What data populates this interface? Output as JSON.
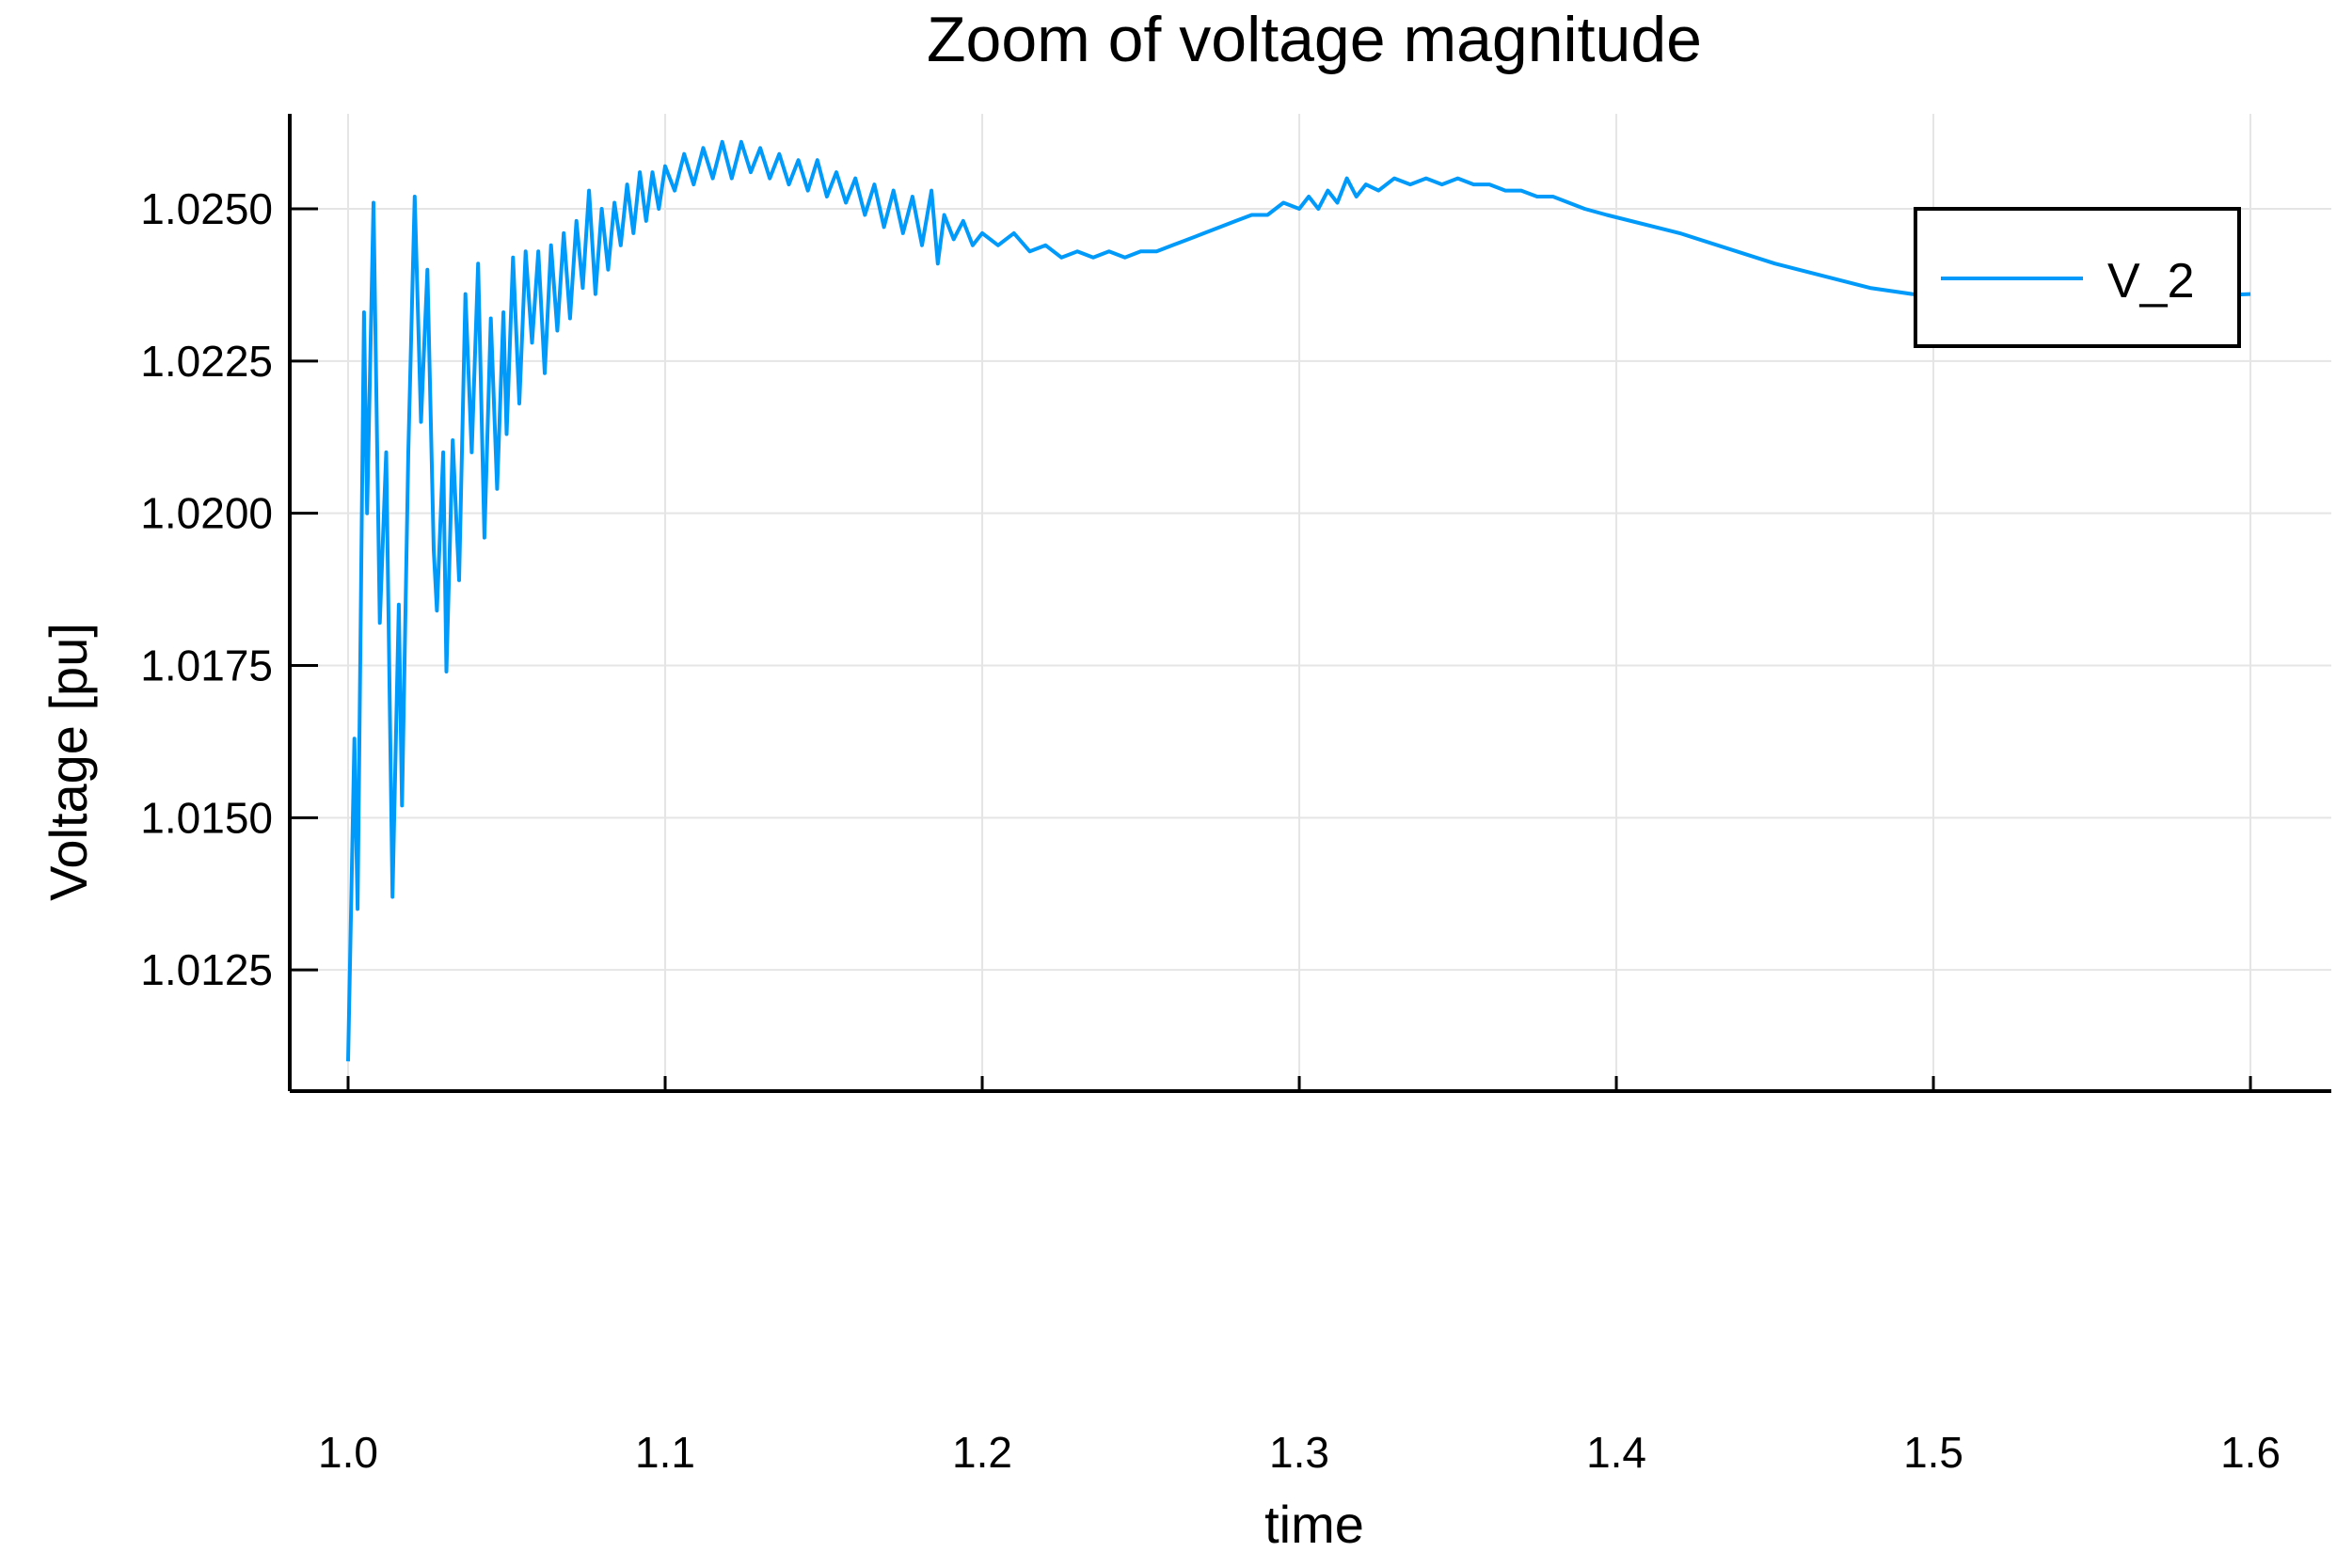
{
  "chart_data": {
    "type": "line",
    "title": "Zoom of voltage magnitude",
    "xlabel": "time",
    "ylabel": "Voltage [pu]",
    "xlim": [
      0.9816,
      1.6255
    ],
    "ylim": [
      1.01051,
      1.02656
    ],
    "xticks": [
      1.0,
      1.1,
      1.2,
      1.3,
      1.4,
      1.5,
      1.6
    ],
    "xtick_labels": [
      "1.0",
      "1.1",
      "1.2",
      "1.3",
      "1.4",
      "1.5",
      "1.6"
    ],
    "yticks": [
      1.0125,
      1.015,
      1.0175,
      1.02,
      1.0225,
      1.025
    ],
    "ytick_labels": [
      "1.0125",
      "1.0150",
      "1.0175",
      "1.0200",
      "1.0225",
      "1.0250"
    ],
    "grid": true,
    "legend_position": "top-right",
    "series": [
      {
        "name": "V_2",
        "color": "#009AFA",
        "x": [
          1.0,
          1.002,
          1.003,
          1.005,
          1.006,
          1.008,
          1.01,
          1.012,
          1.014,
          1.016,
          1.017,
          1.019,
          1.021,
          1.023,
          1.025,
          1.027,
          1.028,
          1.03,
          1.031,
          1.033,
          1.035,
          1.037,
          1.039,
          1.041,
          1.043,
          1.045,
          1.047,
          1.049,
          1.05,
          1.052,
          1.054,
          1.056,
          1.058,
          1.06,
          1.062,
          1.064,
          1.066,
          1.068,
          1.07,
          1.072,
          1.074,
          1.076,
          1.078,
          1.08,
          1.082,
          1.084,
          1.086,
          1.088,
          1.09,
          1.092,
          1.094,
          1.096,
          1.098,
          1.1,
          1.103,
          1.106,
          1.109,
          1.112,
          1.115,
          1.118,
          1.121,
          1.124,
          1.127,
          1.13,
          1.133,
          1.136,
          1.139,
          1.142,
          1.145,
          1.148,
          1.151,
          1.154,
          1.157,
          1.16,
          1.163,
          1.166,
          1.169,
          1.172,
          1.175,
          1.178,
          1.181,
          1.184,
          1.186,
          1.188,
          1.191,
          1.194,
          1.197,
          1.2,
          1.205,
          1.21,
          1.215,
          1.22,
          1.225,
          1.23,
          1.235,
          1.24,
          1.245,
          1.25,
          1.255,
          1.26,
          1.265,
          1.27,
          1.275,
          1.28,
          1.285,
          1.29,
          1.295,
          1.3,
          1.303,
          1.306,
          1.309,
          1.312,
          1.315,
          1.318,
          1.321,
          1.325,
          1.33,
          1.335,
          1.34,
          1.345,
          1.35,
          1.355,
          1.36,
          1.365,
          1.37,
          1.375,
          1.38,
          1.385,
          1.39,
          1.397,
          1.42,
          1.45,
          1.48,
          1.5,
          1.53,
          1.56,
          1.6
        ],
        "y": [
          1.011,
          1.0163,
          1.0135,
          1.0233,
          1.02,
          1.0251,
          1.0182,
          1.021,
          1.0137,
          1.0185,
          1.0152,
          1.021,
          1.0252,
          1.0215,
          1.024,
          1.0194,
          1.0184,
          1.021,
          1.0174,
          1.0212,
          1.0189,
          1.0236,
          1.021,
          1.0241,
          1.0196,
          1.0232,
          1.0204,
          1.0233,
          1.0213,
          1.0242,
          1.0218,
          1.0243,
          1.0228,
          1.0243,
          1.0223,
          1.0244,
          1.023,
          1.0246,
          1.0232,
          1.0248,
          1.0237,
          1.0253,
          1.0236,
          1.025,
          1.024,
          1.0251,
          1.0244,
          1.0254,
          1.0246,
          1.0256,
          1.0248,
          1.0256,
          1.025,
          1.0257,
          1.0253,
          1.0259,
          1.0254,
          1.026,
          1.0255,
          1.0261,
          1.0255,
          1.0261,
          1.0256,
          1.026,
          1.0255,
          1.0259,
          1.0254,
          1.0258,
          1.0253,
          1.0258,
          1.0252,
          1.0256,
          1.0251,
          1.0255,
          1.0249,
          1.0254,
          1.0247,
          1.0253,
          1.0246,
          1.0252,
          1.0244,
          1.0253,
          1.0241,
          1.0249,
          1.0245,
          1.0248,
          1.0244,
          1.0246,
          1.0244,
          1.0246,
          1.0243,
          1.0244,
          1.0242,
          1.0243,
          1.0242,
          1.0243,
          1.0242,
          1.0243,
          1.0243,
          1.0244,
          1.0245,
          1.0246,
          1.0247,
          1.0248,
          1.0249,
          1.0249,
          1.0251,
          1.025,
          1.0252,
          1.025,
          1.0253,
          1.0251,
          1.0255,
          1.0252,
          1.0254,
          1.0253,
          1.0255,
          1.0254,
          1.0255,
          1.0254,
          1.0255,
          1.0254,
          1.0254,
          1.0253,
          1.0253,
          1.0252,
          1.0252,
          1.0251,
          1.025,
          1.0249,
          1.0246,
          1.0241,
          1.0237,
          1.02355,
          1.0235,
          1.02352,
          1.0236
        ]
      }
    ]
  }
}
